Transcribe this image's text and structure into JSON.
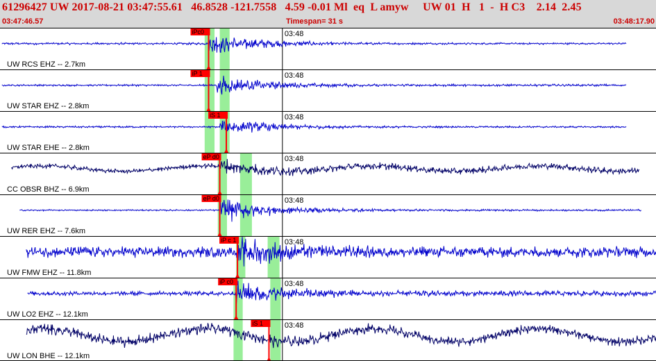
{
  "header": {
    "event_line": "61296427 UW 2017-08-21 03:47:55.61   46.8528 -121.7558   4.59 -0.01 Ml  eq  L amyw     UW 01  H   1  -  H C3    2.14  2.45",
    "start_time": "03:47:46.57",
    "timespan": "Timespan=  31 s",
    "end_time": "03:48:17.90"
  },
  "minute_label": "03:48",
  "traces": [
    {
      "label": "UW RCS EHZ -- 2.7km",
      "color": "#0000cc",
      "start": 0.003,
      "end": 0.955,
      "onset": 0.318,
      "amp": 0.7,
      "bg": 0.06,
      "tail": 0.05,
      "freq": 2.2,
      "picks": [
        {
          "text": "iPc0",
          "pos": 0.318
        }
      ],
      "green": [
        [
          0.312,
          0.327
        ],
        [
          0.335,
          0.35
        ]
      ]
    },
    {
      "label": "UW STAR EHZ -- 2.8km",
      "color": "#0000cc",
      "start": 0.003,
      "end": 0.955,
      "onset": 0.33,
      "amp": 0.55,
      "bg": 0.05,
      "tail": 0.06,
      "freq": 2.2,
      "picks": [
        {
          "text": "iP 1",
          "pos": 0.318
        }
      ],
      "green": [
        [
          0.312,
          0.327
        ],
        [
          0.335,
          0.35
        ]
      ]
    },
    {
      "label": "UW STAR EHE -- 2.8km",
      "color": "#0000cc",
      "start": 0.003,
      "end": 0.955,
      "onset": 0.335,
      "amp": 0.5,
      "bg": 0.05,
      "tail": 0.05,
      "freq": 2.2,
      "picks": [
        {
          "text": "iS 1",
          "pos": 0.345
        }
      ],
      "green": [
        [
          0.312,
          0.327
        ],
        [
          0.335,
          0.35
        ]
      ]
    },
    {
      "label": "CC OBSR BHZ -- 6.9km",
      "color": "#000066",
      "start": 0.017,
      "end": 0.975,
      "onset": 0.335,
      "amp": 0.45,
      "bg": 0.12,
      "tail": 0.18,
      "freq": 1.4,
      "picks": [
        {
          "text": "eP d0",
          "pos": 0.335
        }
      ],
      "green": [
        [
          0.332,
          0.346
        ],
        [
          0.366,
          0.384
        ]
      ]
    },
    {
      "label": "UW RER EHZ -- 7.6km",
      "color": "#0000cc",
      "start": 0.03,
      "end": 0.978,
      "onset": 0.335,
      "amp": 0.75,
      "bg": 0.04,
      "tail": 0.05,
      "freq": 2.2,
      "picks": [
        {
          "text": "eP d0",
          "pos": 0.335
        }
      ],
      "green": [
        [
          0.332,
          0.346
        ],
        [
          0.366,
          0.384
        ]
      ]
    },
    {
      "label": "UW FMW EHZ -- 11.8km",
      "color": "#0000cc",
      "start": 0.04,
      "end": 1.0,
      "onset": 0.362,
      "amp": 0.85,
      "bg": 0.3,
      "tail": 0.3,
      "freq": 2.4,
      "picks": [
        {
          "text": "iP c 1",
          "pos": 0.362
        }
      ],
      "green": [
        [
          0.36,
          0.374
        ],
        [
          0.408,
          0.426
        ]
      ]
    },
    {
      "label": "UW LO2 EHZ -- 12.1km",
      "color": "#0000cc",
      "start": 0.042,
      "end": 1.0,
      "onset": 0.36,
      "amp": 0.7,
      "bg": 0.12,
      "tail": 0.15,
      "freq": 2.4,
      "picks": [
        {
          "text": "iP c0",
          "pos": 0.36
        }
      ],
      "green": [
        [
          0.356,
          0.37
        ],
        [
          0.412,
          0.428
        ]
      ]
    },
    {
      "label": "UW LON BHE -- 12.1km",
      "color": "#000066",
      "start": 0.04,
      "end": 1.0,
      "onset": 0.41,
      "amp": 0.4,
      "bg": 0.3,
      "tail": 0.25,
      "freq": 1.2,
      "picks": [
        {
          "text": "iS 1",
          "pos": 0.41
        }
      ],
      "green": [
        [
          0.356,
          0.37
        ],
        [
          0.412,
          0.428
        ]
      ]
    }
  ],
  "colors": {
    "pick": "#ff0000",
    "window": "#99ee99",
    "border": "#000000",
    "header_text": "#cc0000"
  }
}
